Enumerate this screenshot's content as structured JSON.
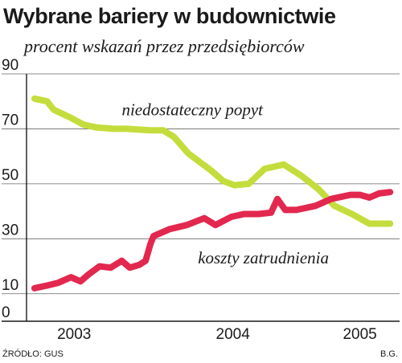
{
  "header": {
    "title": "Wybrane bariery w budownictwie",
    "subtitle": "procent wskazań przez przedsiębiorców"
  },
  "footer": {
    "source": "ŹRÓDŁO: GUS",
    "author": "B.G."
  },
  "chart_data": {
    "type": "line",
    "title": "Wybrane bariery w budownictwie",
    "subtitle": "procent wskazań przez przedsiębiorców",
    "xlabel": "",
    "ylabel": "",
    "ylim": [
      0,
      90
    ],
    "yticks": [
      0,
      10,
      30,
      50,
      70,
      90
    ],
    "xlim": [
      2002.9,
      2005.25
    ],
    "xticks": [
      {
        "value": 2003.2,
        "label": "2003"
      },
      {
        "value": 2004.2,
        "label": "2004"
      },
      {
        "value": 2005.0,
        "label": "2005"
      }
    ],
    "grid": true,
    "legend": "inline labels",
    "series": [
      {
        "name": "niedostateczny popyt",
        "color": "#c5dd3c",
        "x": [
          2002.95,
          2003.03,
          2003.07,
          2003.18,
          2003.26,
          2003.34,
          2003.45,
          2003.53,
          2003.68,
          2003.76,
          2003.83,
          2003.92,
          2004.06,
          2004.14,
          2004.21,
          2004.3,
          2004.4,
          2004.52,
          2004.63,
          2004.74,
          2004.84,
          2004.95,
          2005.06,
          2005.13,
          2005.19
        ],
        "values": [
          81,
          80,
          77,
          74,
          71.5,
          70.5,
          70,
          70,
          69.5,
          69.5,
          67,
          61,
          55,
          51,
          49.5,
          50,
          55.5,
          57,
          53,
          48,
          42,
          39,
          35.5,
          35.5,
          35.5
        ]
      },
      {
        "name": "koszty zatrudnienia",
        "color": "#e3284f",
        "x": [
          2002.95,
          2003.03,
          2003.1,
          2003.18,
          2003.24,
          2003.29,
          2003.36,
          2003.43,
          2003.5,
          2003.55,
          2003.61,
          2003.65,
          2003.68,
          2003.7,
          2003.8,
          2003.91,
          2004.02,
          2004.09,
          2004.19,
          2004.27,
          2004.36,
          2004.44,
          2004.48,
          2004.53,
          2004.6,
          2004.72,
          2004.82,
          2004.94,
          2005.0,
          2005.06,
          2005.12,
          2005.19
        ],
        "values": [
          12,
          13,
          14,
          16,
          14.5,
          17,
          20,
          19.5,
          22,
          19.5,
          20.5,
          22,
          28,
          31,
          33.5,
          35,
          37.5,
          35,
          38,
          39,
          39,
          39.5,
          44.5,
          40.5,
          40.5,
          42,
          44.5,
          46,
          46,
          45,
          46.5,
          47
        ]
      }
    ],
    "annotations": [
      {
        "text": "niedostateczny popyt",
        "series": "niedostateczny popyt",
        "x": 2003.5,
        "y": 75
      },
      {
        "text": "koszty zatrudnienia",
        "series": "koszty zatrudnienia",
        "x": 2003.98,
        "y": 21
      }
    ]
  }
}
